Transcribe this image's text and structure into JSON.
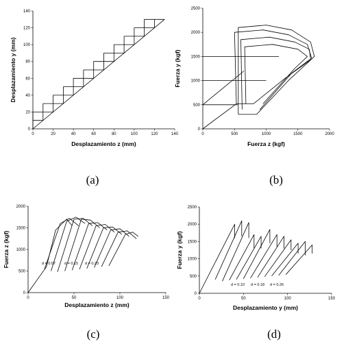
{
  "chart_data": [
    {
      "id": "a",
      "type": "line",
      "panel_label": "(a)",
      "xlabel": "Desplazamiento  z  (mm)",
      "ylabel": "Desplazamiento  y  (mm)",
      "xlim": [
        0,
        140
      ],
      "ylim": [
        0,
        140
      ],
      "xticks": [
        0,
        20,
        40,
        60,
        80,
        100,
        120,
        140
      ],
      "yticks": [
        0,
        20,
        40,
        60,
        80,
        100,
        120,
        140
      ],
      "series": [
        {
          "points": [
            [
              0,
              0
            ],
            [
              130,
              130
            ]
          ]
        },
        {
          "points": [
            [
              0,
              0
            ],
            [
              0,
              10
            ],
            [
              10,
              10
            ],
            [
              10,
              20
            ],
            [
              20,
              20
            ],
            [
              20,
              30
            ],
            [
              30,
              30
            ],
            [
              30,
              40
            ],
            [
              40,
              40
            ],
            [
              40,
              50
            ],
            [
              50,
              50
            ],
            [
              50,
              60
            ],
            [
              60,
              60
            ],
            [
              60,
              70
            ],
            [
              70,
              70
            ],
            [
              70,
              80
            ],
            [
              80,
              80
            ],
            [
              80,
              90
            ],
            [
              90,
              90
            ],
            [
              90,
              100
            ],
            [
              100,
              100
            ],
            [
              100,
              110
            ],
            [
              110,
              110
            ],
            [
              110,
              120
            ],
            [
              120,
              120
            ],
            [
              120,
              130
            ],
            [
              130,
              130
            ]
          ]
        },
        {
          "points": [
            [
              0,
              10
            ],
            [
              0,
              20
            ],
            [
              10,
              20
            ],
            [
              10,
              30
            ],
            [
              20,
              30
            ],
            [
              20,
              40
            ],
            [
              30,
              40
            ],
            [
              30,
              50
            ],
            [
              40,
              50
            ],
            [
              40,
              60
            ],
            [
              50,
              60
            ],
            [
              50,
              70
            ],
            [
              60,
              70
            ],
            [
              60,
              80
            ],
            [
              70,
              80
            ],
            [
              70,
              90
            ],
            [
              80,
              90
            ],
            [
              80,
              100
            ],
            [
              90,
              100
            ],
            [
              90,
              110
            ],
            [
              100,
              110
            ],
            [
              100,
              120
            ],
            [
              110,
              120
            ],
            [
              110,
              130
            ],
            [
              120,
              130
            ]
          ]
        }
      ]
    },
    {
      "id": "b",
      "type": "line",
      "panel_label": "(b)",
      "xlabel": "Fuerza  z  (kgf)",
      "ylabel": "Fuerza  y  (kgf)",
      "xlim": [
        0,
        2000
      ],
      "ylim": [
        0,
        2500
      ],
      "xticks": [
        0,
        500,
        1000,
        1500,
        2000
      ],
      "yticks": [
        0,
        500,
        1000,
        1500,
        2000,
        2500
      ],
      "series": [
        {
          "points": [
            [
              0,
              500
            ],
            [
              650,
              1200
            ]
          ]
        },
        {
          "points": [
            [
              0,
              1000
            ],
            [
              1000,
              1000
            ]
          ]
        },
        {
          "points": [
            [
              0,
              1500
            ],
            [
              1200,
              1500
            ]
          ]
        },
        {
          "points": [
            [
              0,
              500
            ],
            [
              550,
              500
            ]
          ]
        },
        {
          "points": [
            [
              0,
              0
            ],
            [
              530,
              520
            ],
            [
              500,
              2000
            ],
            [
              950,
              2050
            ],
            [
              1350,
              1950
            ],
            [
              1650,
              1750
            ],
            [
              1720,
              1450
            ],
            [
              1300,
              1050
            ],
            [
              800,
              520
            ],
            [
              530,
              520
            ]
          ]
        },
        {
          "points": [
            [
              560,
              300
            ],
            [
              560,
              2100
            ],
            [
              1000,
              2150
            ],
            [
              1400,
              2050
            ],
            [
              1700,
              1800
            ],
            [
              1760,
              1500
            ],
            [
              1350,
              1000
            ],
            [
              850,
              300
            ],
            [
              560,
              300
            ]
          ]
        },
        {
          "points": [
            [
              620,
              400
            ],
            [
              600,
              1850
            ],
            [
              1050,
              1900
            ],
            [
              1450,
              1800
            ],
            [
              1680,
              1650
            ],
            [
              1700,
              1450
            ],
            [
              1400,
              1150
            ],
            [
              900,
              400
            ]
          ]
        },
        {
          "points": [
            [
              680,
              520
            ],
            [
              660,
              1700
            ],
            [
              1100,
              1750
            ],
            [
              1500,
              1650
            ],
            [
              1650,
              1500
            ],
            [
              1450,
              1250
            ],
            [
              950,
              520
            ]
          ]
        }
      ]
    },
    {
      "id": "c",
      "type": "line",
      "panel_label": "(c)",
      "xlabel": "Desplazamiento  z  (mm)",
      "ylabel": "Fuerza  z  (kgf)",
      "xlim": [
        0,
        150
      ],
      "ylim": [
        0,
        2000
      ],
      "xticks": [
        0,
        50,
        100,
        150
      ],
      "yticks": [
        0,
        500,
        1000,
        1500,
        2000
      ],
      "annotations": [
        "d = 0.07",
        "d = 0.15",
        "d = 0.23"
      ],
      "series": [
        {
          "points": [
            [
              0,
              0
            ],
            [
              20,
              600
            ],
            [
              30,
              1450
            ],
            [
              42,
              1700
            ],
            [
              48,
              1550
            ]
          ]
        },
        {
          "points": [
            [
              18,
              550
            ],
            [
              35,
              1600
            ],
            [
              45,
              1720
            ],
            [
              55,
              1550
            ]
          ]
        },
        {
          "points": [
            [
              25,
              500
            ],
            [
              42,
              1650
            ],
            [
              52,
              1750
            ],
            [
              62,
              1600
            ]
          ]
        },
        {
          "points": [
            [
              32,
              480
            ],
            [
              50,
              1700
            ],
            [
              60,
              1720
            ],
            [
              70,
              1550
            ]
          ]
        },
        {
          "points": [
            [
              40,
              500
            ],
            [
              58,
              1700
            ],
            [
              68,
              1680
            ],
            [
              78,
              1500
            ]
          ]
        },
        {
          "points": [
            [
              48,
              520
            ],
            [
              66,
              1600
            ],
            [
              76,
              1620
            ],
            [
              86,
              1450
            ]
          ]
        },
        {
          "points": [
            [
              56,
              540
            ],
            [
              74,
              1550
            ],
            [
              84,
              1580
            ],
            [
              94,
              1400
            ]
          ]
        },
        {
          "points": [
            [
              64,
              560
            ],
            [
              82,
              1500
            ],
            [
              92,
              1520
            ],
            [
              102,
              1350
            ]
          ]
        },
        {
          "points": [
            [
              72,
              580
            ],
            [
              90,
              1450
            ],
            [
              100,
              1480
            ],
            [
              110,
              1300
            ]
          ]
        },
        {
          "points": [
            [
              80,
              600
            ],
            [
              98,
              1400
            ],
            [
              108,
              1430
            ],
            [
              118,
              1250
            ]
          ]
        },
        {
          "points": [
            [
              88,
              620
            ],
            [
              106,
              1350
            ],
            [
              114,
              1400
            ],
            [
              120,
              1300
            ]
          ]
        }
      ]
    },
    {
      "id": "d",
      "type": "line",
      "panel_label": "(d)",
      "xlabel": "Desplazamiento  y  (mm)",
      "ylabel": "Fuerza  y  (kgf)",
      "xlim": [
        0,
        150
      ],
      "ylim": [
        0,
        2500
      ],
      "xticks": [
        0,
        50,
        100,
        150
      ],
      "yticks": [
        0,
        500,
        1000,
        1500,
        2000,
        2500
      ],
      "annotations": [
        "d = 0.10",
        "d = 0.18",
        "d = 0.26"
      ],
      "series": [
        {
          "points": [
            [
              0,
              0
            ],
            [
              40,
              2000
            ],
            [
              40,
              1600
            ]
          ]
        },
        {
          "points": [
            [
              18,
              400
            ],
            [
              48,
              2100
            ],
            [
              48,
              1650
            ]
          ]
        },
        {
          "points": [
            [
              26,
              350
            ],
            [
              56,
              2050
            ],
            [
              56,
              1600
            ]
          ]
        },
        {
          "points": [
            [
              34,
              380
            ],
            [
              62,
              1700
            ],
            [
              62,
              1300
            ]
          ]
        },
        {
          "points": [
            [
              42,
              400
            ],
            [
              70,
              1650
            ],
            [
              70,
              1300
            ]
          ]
        },
        {
          "points": [
            [
              50,
              420
            ],
            [
              80,
              1850
            ],
            [
              80,
              1450
            ]
          ]
        },
        {
          "points": [
            [
              58,
              440
            ],
            [
              88,
              1700
            ],
            [
              88,
              1350
            ]
          ]
        },
        {
          "points": [
            [
              66,
              460
            ],
            [
              96,
              1650
            ],
            [
              96,
              1300
            ]
          ]
        },
        {
          "points": [
            [
              74,
              480
            ],
            [
              104,
              1550
            ],
            [
              104,
              1250
            ]
          ]
        },
        {
          "points": [
            [
              82,
              500
            ],
            [
              112,
              1450
            ],
            [
              112,
              1150
            ]
          ]
        },
        {
          "points": [
            [
              90,
              520
            ],
            [
              120,
              1500
            ],
            [
              120,
              1100
            ]
          ]
        },
        {
          "points": [
            [
              98,
              540
            ],
            [
              128,
              1400
            ],
            [
              128,
              1150
            ]
          ]
        }
      ]
    }
  ]
}
